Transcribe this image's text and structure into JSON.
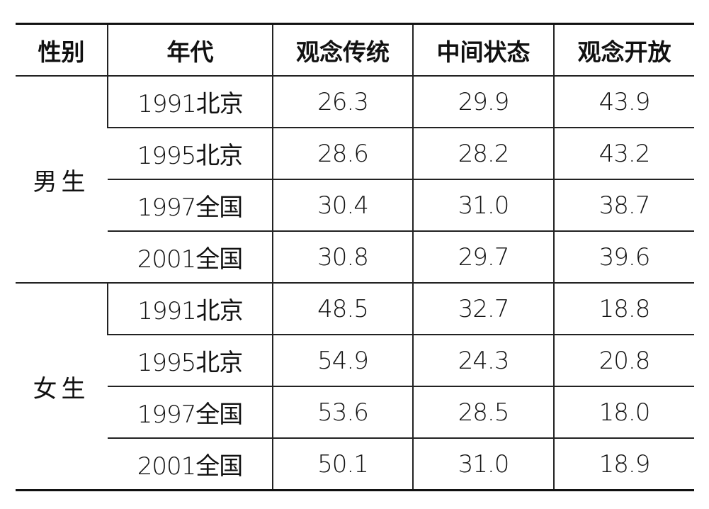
{
  "table": {
    "header": [
      "性别",
      "年代",
      "观念传统",
      "中间状态",
      "观念开放"
    ],
    "groups": [
      {
        "gender": "男生",
        "rows": [
          [
            "1991北京",
            "26.3",
            "29.9",
            "43.9"
          ],
          [
            "1995北京",
            "28.6",
            "28.2",
            "43.2"
          ],
          [
            "1997全国",
            "30.4",
            "31.0",
            "38.7"
          ],
          [
            "2001全国",
            "30.8",
            "29.7",
            "39.6"
          ]
        ]
      },
      {
        "gender": "女生",
        "rows": [
          [
            "1991北京",
            "48.5",
            "32.7",
            "18.8"
          ],
          [
            "1995北京",
            "54.9",
            "24.3",
            "20.8"
          ],
          [
            "1997全国",
            "53.6",
            "28.5",
            "18.0"
          ],
          [
            "2001全国",
            "50.1",
            "31.0",
            "18.9"
          ]
        ]
      }
    ]
  }
}
